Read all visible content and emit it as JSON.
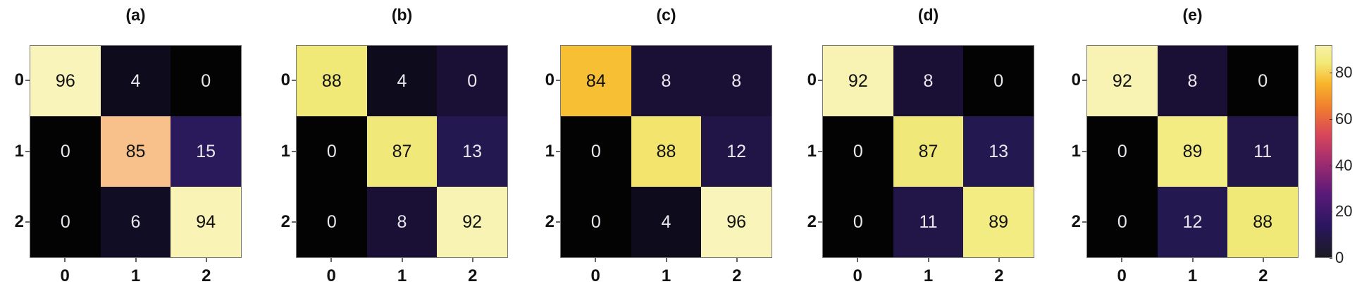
{
  "chart_data": {
    "type": "heatmap",
    "panels": [
      {
        "title": "(a)",
        "values": [
          [
            96,
            4,
            0
          ],
          [
            0,
            85,
            15
          ],
          [
            0,
            6,
            94
          ]
        ],
        "cell_colors": [
          [
            "#f9f4b9",
            "#0e0b1c",
            "#030303"
          ],
          [
            "#030303",
            "#f8c08a",
            "#2a1a5c"
          ],
          [
            "#030303",
            "#110d24",
            "#f9f3b5"
          ]
        ]
      },
      {
        "title": "(b)",
        "values": [
          [
            88,
            4,
            0
          ],
          [
            0,
            87,
            13
          ],
          [
            0,
            8,
            92
          ]
        ],
        "cell_colors": [
          [
            "#f0e877",
            "#0e0b1c",
            "#1a1036"
          ],
          [
            "#030303",
            "#f1e87a",
            "#231850"
          ],
          [
            "#030303",
            "#1a1036",
            "#f8f3b3"
          ]
        ]
      },
      {
        "title": "(c)",
        "values": [
          [
            84,
            8,
            8
          ],
          [
            0,
            88,
            12
          ],
          [
            0,
            4,
            96
          ]
        ],
        "cell_colors": [
          [
            "#f7bf33",
            "#1a1036",
            "#1a1036"
          ],
          [
            "#030303",
            "#f3e46d",
            "#211547"
          ],
          [
            "#030303",
            "#0e0b1c",
            "#f9f4b9"
          ]
        ]
      },
      {
        "title": "(d)",
        "values": [
          [
            92,
            8,
            0
          ],
          [
            0,
            87,
            13
          ],
          [
            0,
            11,
            89
          ]
        ],
        "cell_colors": [
          [
            "#f8f3b3",
            "#1a1036",
            "#030303"
          ],
          [
            "#030303",
            "#f1e87a",
            "#231850"
          ],
          [
            "#030303",
            "#221648",
            "#f3ec83"
          ]
        ]
      },
      {
        "title": "(e)",
        "values": [
          [
            92,
            8,
            0
          ],
          [
            0,
            89,
            11
          ],
          [
            0,
            12,
            88
          ]
        ],
        "cell_colors": [
          [
            "#f8f3b3",
            "#1a1036",
            "#030303"
          ],
          [
            "#030303",
            "#f3ec83",
            "#221648"
          ],
          [
            "#030303",
            "#231850",
            "#f0e877"
          ]
        ]
      }
    ],
    "x_tick_labels": [
      "0",
      "1",
      "2"
    ],
    "y_tick_labels": [
      "0",
      "1",
      "2"
    ],
    "colorbar": {
      "range": [
        0,
        92
      ],
      "ticks": [
        "0",
        "20",
        "40",
        "60",
        "80"
      ],
      "colormap": "inferno"
    },
    "dark_text_color": "#111111",
    "light_text_color": "#e8e8ee"
  }
}
